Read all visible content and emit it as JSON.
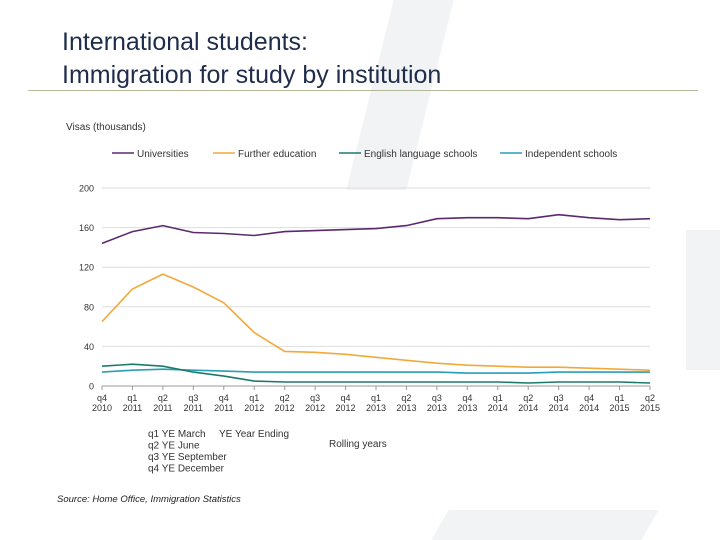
{
  "title": {
    "line1": "International students:",
    "line2": "Immigration for study by institution"
  },
  "source": "Source: Home Office, Immigration Statistics",
  "chart_data": {
    "type": "line",
    "title": "",
    "ylabel": "Visas (thousands)",
    "xlabel": "Rolling years",
    "ylim": [
      0,
      200
    ],
    "yticks": [
      0,
      40,
      80,
      120,
      160,
      200
    ],
    "grid": true,
    "legend_position": "top",
    "categories": [
      {
        "q": "q4",
        "y": "2010"
      },
      {
        "q": "q1",
        "y": "2011"
      },
      {
        "q": "q2",
        "y": "2011"
      },
      {
        "q": "q3",
        "y": "2011"
      },
      {
        "q": "q4",
        "y": "2011"
      },
      {
        "q": "q1",
        "y": "2012"
      },
      {
        "q": "q2",
        "y": "2012"
      },
      {
        "q": "q3",
        "y": "2012"
      },
      {
        "q": "q4",
        "y": "2012"
      },
      {
        "q": "q1",
        "y": "2013"
      },
      {
        "q": "q2",
        "y": "2013"
      },
      {
        "q": "q3",
        "y": "2013"
      },
      {
        "q": "q4",
        "y": "2013"
      },
      {
        "q": "q1",
        "y": "2014"
      },
      {
        "q": "q2",
        "y": "2014"
      },
      {
        "q": "q3",
        "y": "2014"
      },
      {
        "q": "q4",
        "y": "2014"
      },
      {
        "q": "q1",
        "y": "2015"
      },
      {
        "q": "q2",
        "y": "2015"
      }
    ],
    "series": [
      {
        "name": "Universities",
        "color": "#5b2a6e",
        "values": [
          144,
          156,
          162,
          155,
          154,
          152,
          156,
          157,
          158,
          159,
          162,
          169,
          170,
          170,
          169,
          173,
          170,
          168,
          169
        ]
      },
      {
        "name": "Further education",
        "color": "#f2a93b",
        "values": [
          65,
          98,
          113,
          100,
          84,
          54,
          35,
          34,
          32,
          29,
          26,
          23,
          21,
          20,
          19,
          19,
          18,
          17,
          16
        ]
      },
      {
        "name": "English language schools",
        "color": "#1d7a6b",
        "values": [
          20,
          22,
          20,
          14,
          10,
          5,
          4,
          4,
          4,
          4,
          4,
          4,
          4,
          4,
          3,
          4,
          4,
          4,
          3
        ]
      },
      {
        "name": "Independent schools",
        "color": "#2a9db6",
        "values": [
          14,
          16,
          17,
          16,
          15,
          14,
          14,
          14,
          14,
          14,
          14,
          14,
          13,
          13,
          13,
          14,
          14,
          14,
          14
        ]
      }
    ],
    "key_notes": [
      "q1 YE March",
      "q2 YE June",
      "q3 YE September",
      "q4 YE December"
    ],
    "key_abbrev": "YE Year Ending"
  }
}
